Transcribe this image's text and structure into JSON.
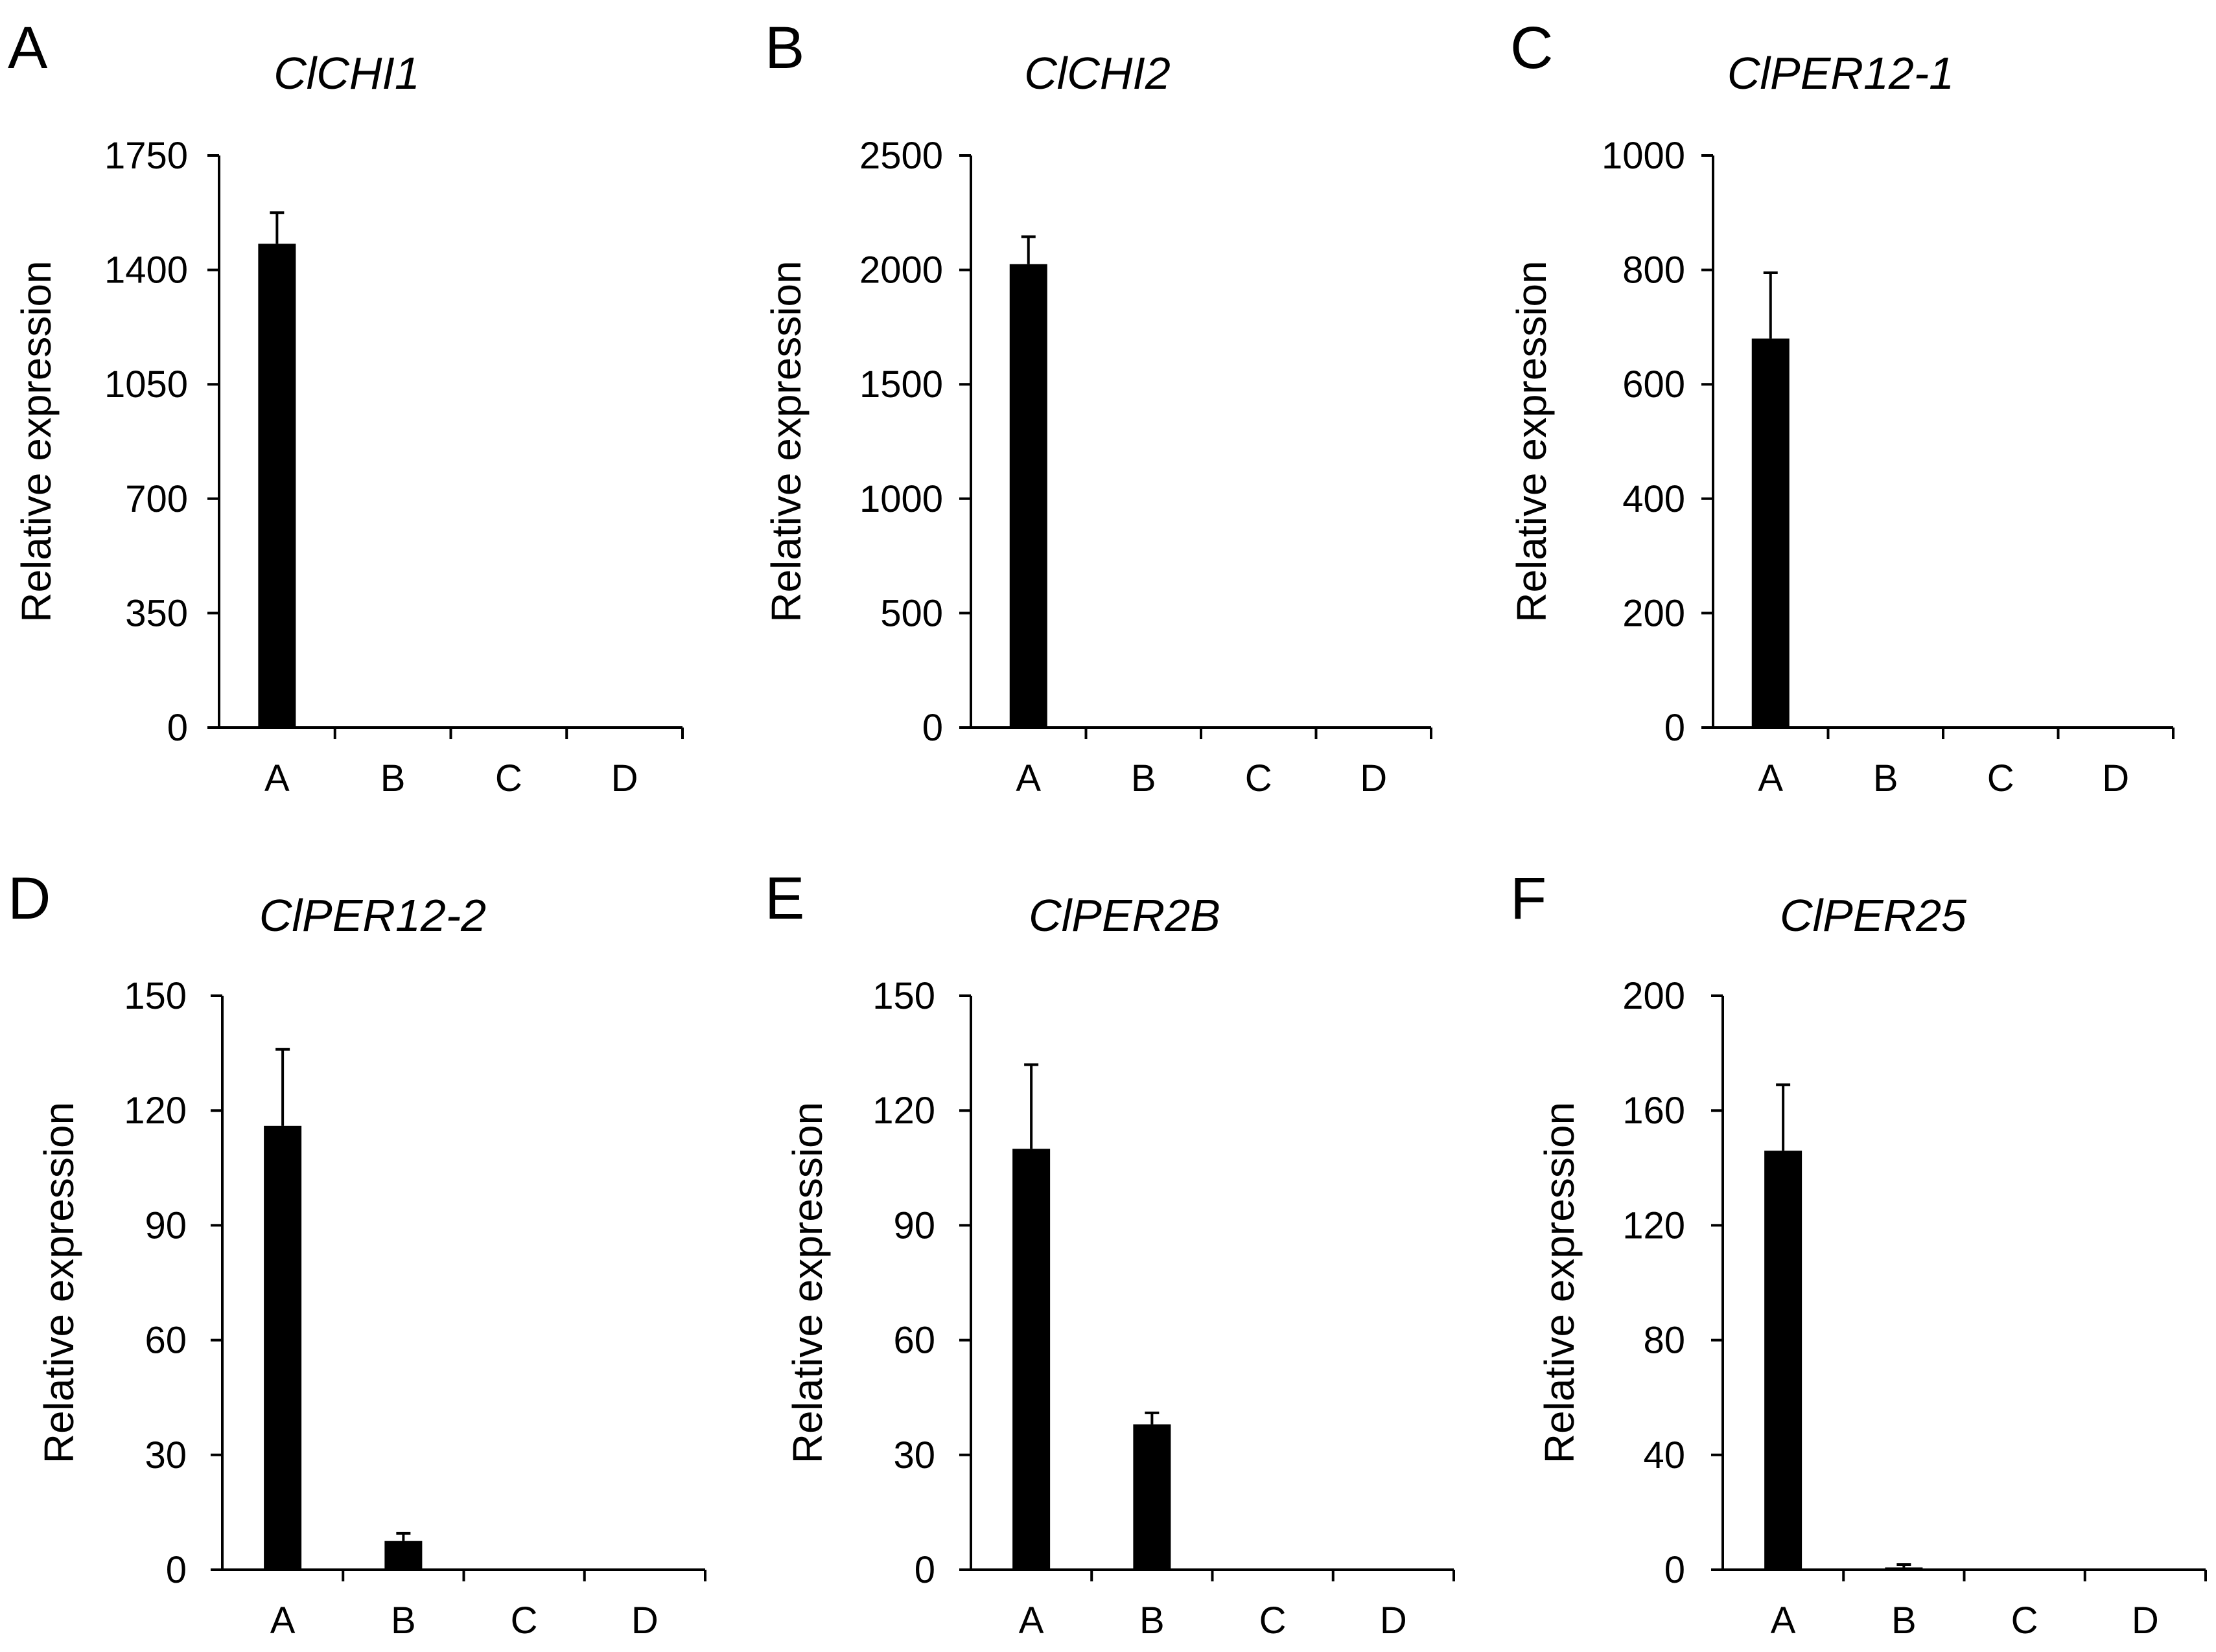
{
  "figure": {
    "xlabel": "",
    "ylabel": "Relative expression"
  },
  "chart_data": [
    {
      "type": "bar",
      "panel": "A",
      "title": "ClCHI1",
      "xlabel": "",
      "ylabel": "Relative expression",
      "categories": [
        "A",
        "B",
        "C",
        "D"
      ],
      "values": [
        1480,
        0,
        0,
        0
      ],
      "errors": [
        95,
        0,
        0,
        0
      ],
      "ylim": [
        0,
        1750
      ],
      "yticks": [
        "0",
        "350",
        "700",
        "1050",
        "1400",
        "1750"
      ],
      "color": "#000000"
    },
    {
      "type": "bar",
      "panel": "B",
      "title": "ClCHI2",
      "xlabel": "",
      "ylabel": "Relative expression",
      "categories": [
        "A",
        "B",
        "C",
        "D"
      ],
      "values": [
        2025,
        0,
        0,
        0
      ],
      "errors": [
        120,
        0,
        0,
        0
      ],
      "ylim": [
        0,
        2500
      ],
      "yticks": [
        "0",
        "500",
        "1000",
        "1500",
        "2000",
        "2500"
      ],
      "color": "#000000"
    },
    {
      "type": "bar",
      "panel": "C",
      "title": "ClPER12-1",
      "xlabel": "",
      "ylabel": "Relative expression",
      "categories": [
        "A",
        "B",
        "C",
        "D"
      ],
      "values": [
        680,
        2,
        0,
        0
      ],
      "errors": [
        115,
        0,
        0,
        0
      ],
      "ylim": [
        0,
        1000
      ],
      "yticks": [
        "0",
        "200",
        "400",
        "600",
        "800",
        "1000"
      ],
      "color": "#000000"
    },
    {
      "type": "bar",
      "panel": "D",
      "title": "ClPER12-2",
      "xlabel": "",
      "ylabel": "Relative expression",
      "categories": [
        "A",
        "B",
        "C",
        "D"
      ],
      "values": [
        116,
        7.5,
        0,
        0
      ],
      "errors": [
        20,
        2,
        0,
        0
      ],
      "ylim": [
        0,
        150
      ],
      "yticks": [
        "0",
        "30",
        "60",
        "90",
        "120",
        "150"
      ],
      "color": "#000000"
    },
    {
      "type": "bar",
      "panel": "E",
      "title": "ClPER2B",
      "xlabel": "",
      "ylabel": "Relative expression",
      "categories": [
        "A",
        "B",
        "C",
        "D"
      ],
      "values": [
        110,
        38,
        0,
        0
      ],
      "errors": [
        22,
        3,
        0,
        0
      ],
      "ylim": [
        0,
        150
      ],
      "yticks": [
        "0",
        "30",
        "60",
        "90",
        "120",
        "150"
      ],
      "color": "#000000"
    },
    {
      "type": "bar",
      "panel": "F",
      "title": "ClPER25",
      "xlabel": "",
      "ylabel": "Relative expression",
      "categories": [
        "A",
        "B",
        "C",
        "D"
      ],
      "values": [
        146,
        0.8,
        0,
        0
      ],
      "errors": [
        23,
        1,
        0,
        0
      ],
      "ylim": [
        0,
        200
      ],
      "yticks": [
        "0",
        "40",
        "80",
        "120",
        "160",
        "200"
      ],
      "color": "#000000"
    }
  ]
}
